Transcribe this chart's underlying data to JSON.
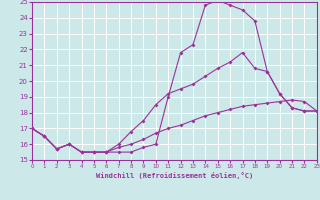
{
  "xlabel": "Windchill (Refroidissement éolien,°C)",
  "xlim": [
    0,
    23
  ],
  "ylim": [
    15,
    25
  ],
  "xticks": [
    0,
    1,
    2,
    3,
    4,
    5,
    6,
    7,
    8,
    9,
    10,
    11,
    12,
    13,
    14,
    15,
    16,
    17,
    18,
    19,
    20,
    21,
    22,
    23
  ],
  "yticks": [
    15,
    16,
    17,
    18,
    19,
    20,
    21,
    22,
    23,
    24,
    25
  ],
  "background_color": "#cce8e8",
  "grid_color": "#ffffff",
  "line_color": "#993399",
  "curve1_x": [
    0,
    1,
    2,
    3,
    4,
    5,
    6,
    7,
    8,
    9,
    10,
    11,
    12,
    13,
    14,
    15,
    16,
    17,
    18,
    19,
    20,
    21,
    22,
    23
  ],
  "curve1_y": [
    17.0,
    16.5,
    15.7,
    16.0,
    15.5,
    15.5,
    15.5,
    15.5,
    15.5,
    15.8,
    16.0,
    19.0,
    21.8,
    22.3,
    24.8,
    25.1,
    24.8,
    24.5,
    23.8,
    20.6,
    19.2,
    18.3,
    18.1,
    18.1
  ],
  "curve2_x": [
    0,
    1,
    2,
    3,
    4,
    5,
    6,
    7,
    8,
    9,
    10,
    11,
    12,
    13,
    14,
    15,
    16,
    17,
    18,
    19,
    20,
    21,
    22,
    23
  ],
  "curve2_y": [
    17.0,
    16.5,
    15.7,
    16.0,
    15.5,
    15.5,
    15.5,
    16.0,
    16.8,
    17.5,
    18.5,
    19.2,
    19.5,
    19.8,
    20.3,
    20.8,
    21.2,
    21.8,
    20.8,
    20.6,
    19.2,
    18.3,
    18.1,
    18.1
  ],
  "curve3_x": [
    0,
    1,
    2,
    3,
    4,
    5,
    6,
    7,
    8,
    9,
    10,
    11,
    12,
    13,
    14,
    15,
    16,
    17,
    18,
    19,
    20,
    21,
    22,
    23
  ],
  "curve3_y": [
    17.0,
    16.5,
    15.7,
    16.0,
    15.5,
    15.5,
    15.5,
    15.8,
    16.0,
    16.3,
    16.7,
    17.0,
    17.2,
    17.5,
    17.8,
    18.0,
    18.2,
    18.4,
    18.5,
    18.6,
    18.7,
    18.8,
    18.7,
    18.1
  ]
}
